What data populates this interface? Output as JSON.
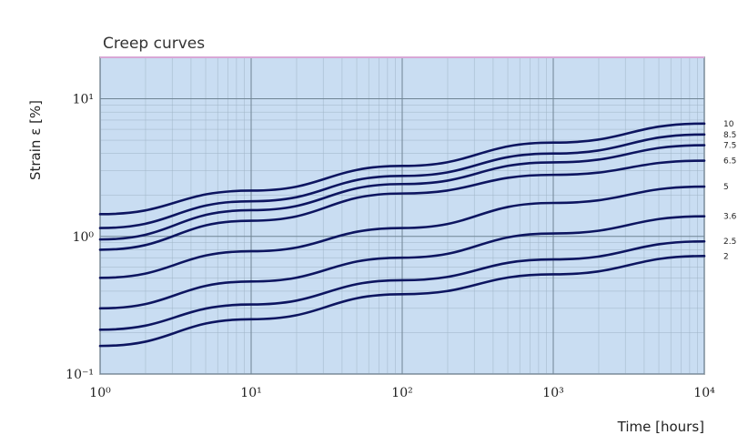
{
  "chart_data": {
    "type": "line",
    "title": "Creep curves",
    "xlabel": "Time [hours]",
    "ylabel": "Strain ε [%]",
    "x_scale": "log",
    "y_scale": "log",
    "xlim": [
      1,
      10000
    ],
    "ylim": [
      0.1,
      20
    ],
    "grid": true,
    "x_ticks": [
      {
        "value": 1,
        "label": "10⁰"
      },
      {
        "value": 10,
        "label": "10¹"
      },
      {
        "value": 100,
        "label": "10²"
      },
      {
        "value": 1000,
        "label": "10³"
      },
      {
        "value": 10000,
        "label": "10⁴"
      }
    ],
    "y_ticks": [
      {
        "value": 0.1,
        "label": "10⁻¹"
      },
      {
        "value": 1,
        "label": "10⁰"
      },
      {
        "value": 10,
        "label": "10¹"
      }
    ],
    "x": [
      1,
      10,
      100,
      1000,
      10000
    ],
    "series": [
      {
        "name": "10",
        "values": [
          1.45,
          2.15,
          3.25,
          4.8,
          6.6
        ]
      },
      {
        "name": "8.5",
        "values": [
          1.15,
          1.8,
          2.75,
          4.0,
          5.5
        ]
      },
      {
        "name": "7.5",
        "values": [
          0.95,
          1.55,
          2.4,
          3.45,
          4.6
        ]
      },
      {
        "name": "6.5",
        "values": [
          0.8,
          1.3,
          2.05,
          2.8,
          3.55
        ]
      },
      {
        "name": "5",
        "values": [
          0.5,
          0.78,
          1.15,
          1.75,
          2.3
        ]
      },
      {
        "name": "3.6",
        "values": [
          0.3,
          0.47,
          0.7,
          1.05,
          1.4
        ]
      },
      {
        "name": "2.5",
        "values": [
          0.21,
          0.32,
          0.48,
          0.68,
          0.92
        ]
      },
      {
        "name": "2",
        "values": [
          0.16,
          0.25,
          0.38,
          0.53,
          0.72
        ]
      }
    ],
    "colors": {
      "plot_bg": "#c9ddf2",
      "border": "#222222",
      "top_border": "#d8a8d6",
      "grid_major": "#6f8494",
      "grid_minor": "#9fb4c6",
      "curve": "#0d1560"
    }
  }
}
